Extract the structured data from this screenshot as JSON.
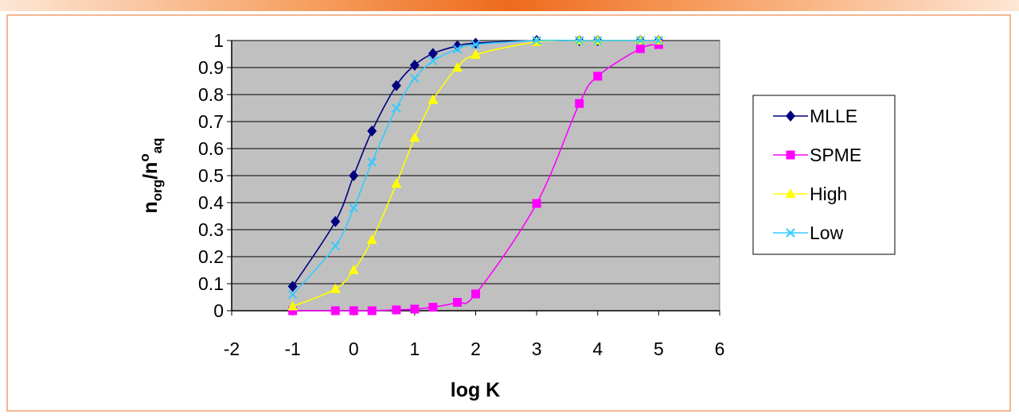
{
  "chart_data": {
    "type": "line",
    "xlabel": "log K",
    "ylabel": {
      "base": "n",
      "sub1": "org",
      "mid": "/n",
      "sup": "o",
      "sub2": "aq"
    },
    "xlim": [
      -2,
      6
    ],
    "ylim": [
      0,
      1
    ],
    "x_ticks": [
      "-2",
      "-1",
      "0",
      "1",
      "2",
      "3",
      "4",
      "5",
      "6"
    ],
    "y_ticks": [
      "0",
      "0.1",
      "0.2",
      "0.3",
      "0.4",
      "0.5",
      "0.6",
      "0.7",
      "0.8",
      "0.9",
      "1"
    ],
    "grid": "horizontal",
    "plot_background": "#c0c0c0",
    "legend_position": "right",
    "series": [
      {
        "name": "MLLE",
        "color": "#000080",
        "marker": "diamond",
        "points": [
          [
            -1,
            0.09
          ],
          [
            -0.3,
            0.33
          ],
          [
            0,
            0.5
          ],
          [
            0.3,
            0.665
          ],
          [
            0.7,
            0.833
          ],
          [
            1,
            0.909
          ],
          [
            1.3,
            0.952
          ],
          [
            1.7,
            0.98
          ],
          [
            2,
            0.99
          ],
          [
            3,
            1
          ],
          [
            3.7,
            1
          ],
          [
            4,
            1
          ],
          [
            4.7,
            1
          ],
          [
            5,
            1
          ]
        ]
      },
      {
        "name": "SPME",
        "color": "#ff00ff",
        "marker": "square",
        "points": [
          [
            -1,
            0
          ],
          [
            -0.3,
            0
          ],
          [
            0,
            0
          ],
          [
            0.3,
            0
          ],
          [
            0.7,
            0.003
          ],
          [
            1,
            0.006
          ],
          [
            1.3,
            0.013
          ],
          [
            1.7,
            0.031
          ],
          [
            2,
            0.062
          ],
          [
            3,
            0.397
          ],
          [
            3.7,
            0.767
          ],
          [
            4,
            0.868
          ],
          [
            4.7,
            0.97
          ],
          [
            5,
            0.985
          ]
        ]
      },
      {
        "name": "High",
        "color": "#ffff00",
        "marker": "triangle",
        "points": [
          [
            -1,
            0.016
          ],
          [
            -0.3,
            0.08
          ],
          [
            0,
            0.15
          ],
          [
            0.3,
            0.262
          ],
          [
            0.7,
            0.47
          ],
          [
            1,
            0.64
          ],
          [
            1.3,
            0.78
          ],
          [
            1.7,
            0.9
          ],
          [
            2,
            0.947
          ],
          [
            3,
            0.995
          ],
          [
            3.7,
            1
          ],
          [
            4,
            1
          ],
          [
            4.7,
            1
          ],
          [
            5,
            1
          ]
        ]
      },
      {
        "name": "Low",
        "color": "#33ccff",
        "marker": "x",
        "points": [
          [
            -1,
            0.06
          ],
          [
            -0.3,
            0.24
          ],
          [
            0,
            0.38
          ],
          [
            0.3,
            0.55
          ],
          [
            0.7,
            0.75
          ],
          [
            1,
            0.86
          ],
          [
            1.3,
            0.925
          ],
          [
            1.7,
            0.968
          ],
          [
            2,
            0.985
          ],
          [
            3,
            1
          ],
          [
            3.7,
            1
          ],
          [
            4,
            1
          ],
          [
            4.7,
            1
          ],
          [
            5,
            1
          ]
        ]
      }
    ]
  }
}
